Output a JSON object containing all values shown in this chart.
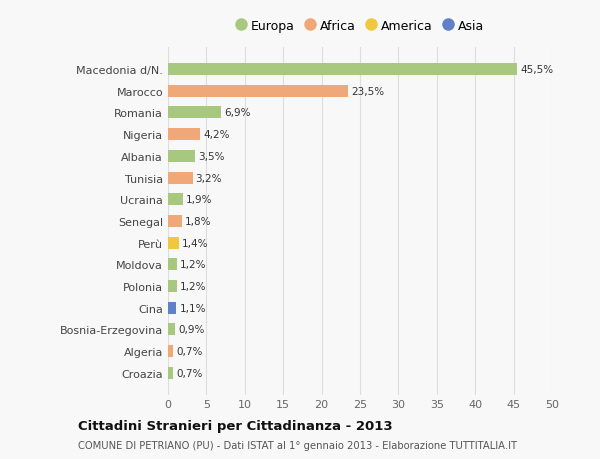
{
  "categories": [
    "Croazia",
    "Algeria",
    "Bosnia-Erzegovina",
    "Cina",
    "Polonia",
    "Moldova",
    "Perù",
    "Senegal",
    "Ucraina",
    "Tunisia",
    "Albania",
    "Nigeria",
    "Romania",
    "Marocco",
    "Macedonia d/N."
  ],
  "values": [
    0.7,
    0.7,
    0.9,
    1.1,
    1.2,
    1.2,
    1.4,
    1.8,
    1.9,
    3.2,
    3.5,
    4.2,
    6.9,
    23.5,
    45.5
  ],
  "labels": [
    "0,7%",
    "0,7%",
    "0,9%",
    "1,1%",
    "1,2%",
    "1,2%",
    "1,4%",
    "1,8%",
    "1,9%",
    "3,2%",
    "3,5%",
    "4,2%",
    "6,9%",
    "23,5%",
    "45,5%"
  ],
  "colors": [
    "#a8c880",
    "#f0a878",
    "#a8c880",
    "#6080c8",
    "#a8c880",
    "#a8c880",
    "#f0c840",
    "#f0a878",
    "#a8c880",
    "#f0a878",
    "#a8c880",
    "#f0a878",
    "#a8c880",
    "#f0a878",
    "#a8c880"
  ],
  "legend": [
    {
      "label": "Europa",
      "color": "#a8c880"
    },
    {
      "label": "Africa",
      "color": "#f0a878"
    },
    {
      "label": "America",
      "color": "#f0c840"
    },
    {
      "label": "Asia",
      "color": "#6080c8"
    }
  ],
  "xlim": [
    0,
    50
  ],
  "xticks": [
    0,
    5,
    10,
    15,
    20,
    25,
    30,
    35,
    40,
    45,
    50
  ],
  "title": "Cittadini Stranieri per Cittadinanza - 2013",
  "subtitle": "COMUNE DI PETRIANO (PU) - Dati ISTAT al 1° gennaio 2013 - Elaborazione TUTTITALIA.IT",
  "bg_color": "#f8f8f8",
  "grid_color": "#dddddd",
  "bar_height": 0.55
}
